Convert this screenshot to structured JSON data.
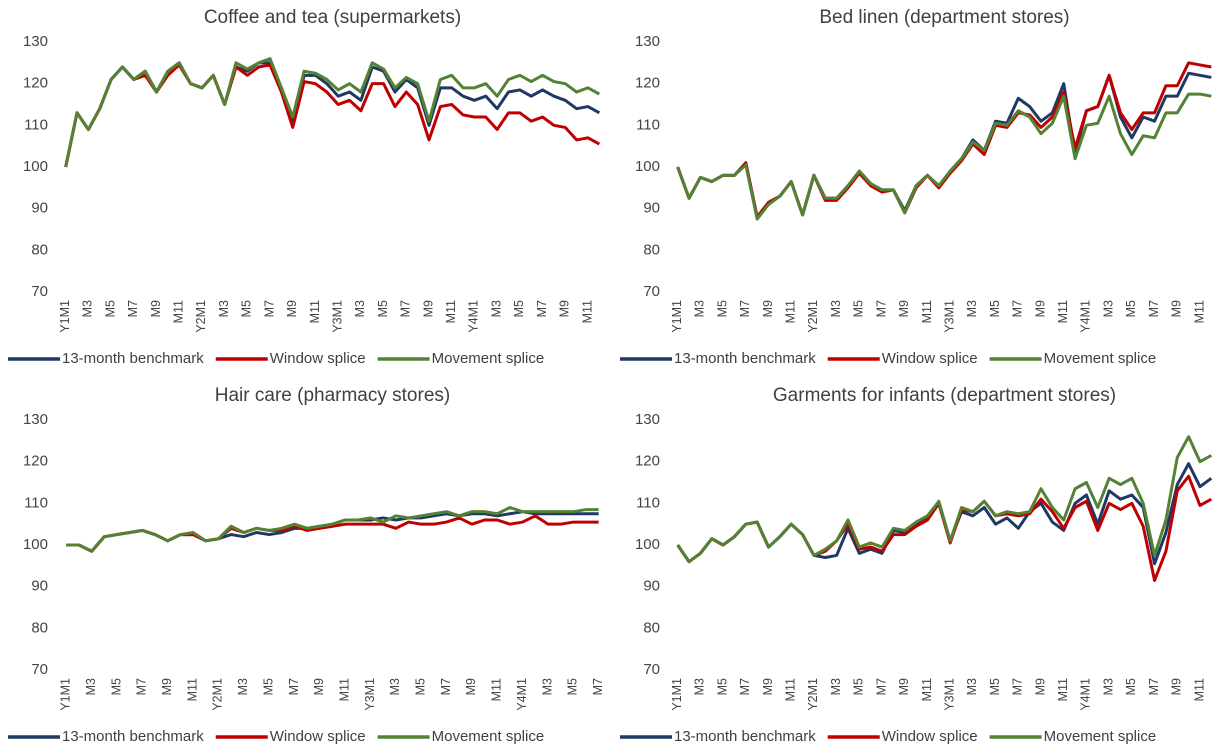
{
  "chart_data": [
    {
      "type": "line",
      "title": "Coffee and tea (supermarkets)",
      "categories": [
        "Y1M1",
        null,
        "M3",
        null,
        "M5",
        null,
        "M7",
        null,
        "M9",
        null,
        "M11",
        null,
        "Y2M1",
        null,
        "M3",
        null,
        "M5",
        null,
        "M7",
        null,
        "M9",
        null,
        "M11",
        null,
        "Y3M1",
        null,
        "M3",
        null,
        "M5",
        null,
        "M7",
        null,
        "M9",
        null,
        "M11",
        null,
        "Y4M1",
        null,
        "M3",
        null,
        "M5",
        null,
        "M7",
        null,
        "M9",
        null,
        "M11",
        null
      ],
      "ylim": [
        70,
        130
      ],
      "yticks": [
        70,
        80,
        90,
        100,
        110,
        120,
        130
      ],
      "grid": false,
      "legend": "bottom",
      "series": [
        {
          "name": "13-month benchmark",
          "color": "#1f3864",
          "values": [
            100,
            113,
            109,
            114,
            121,
            124,
            121,
            123,
            118,
            123,
            125,
            120,
            119,
            122,
            115,
            124,
            123,
            125,
            125,
            119,
            111,
            122,
            122,
            120,
            117,
            118,
            116,
            124,
            123,
            118,
            121,
            119,
            110,
            119,
            119,
            117,
            116,
            117,
            114,
            118,
            118.5,
            117,
            118.5,
            117,
            116,
            114,
            114.5,
            113
          ]
        },
        {
          "name": "Window splice",
          "color": "#c00000",
          "values": [
            100,
            113,
            109,
            114,
            121,
            124,
            121,
            122,
            118,
            122,
            124.5,
            120,
            119,
            122,
            115,
            124,
            122,
            124,
            124.5,
            118,
            109.5,
            120.5,
            120,
            118,
            115,
            116,
            113.5,
            120,
            120,
            114.5,
            118,
            115,
            106.5,
            114.5,
            115,
            112.5,
            112,
            112,
            109,
            113,
            113,
            111,
            112,
            110,
            109.5,
            106.5,
            107,
            105.5
          ]
        },
        {
          "name": "Movement splice",
          "color": "#548235",
          "values": [
            100,
            113,
            109,
            114,
            121,
            124,
            121,
            123,
            118,
            123,
            125,
            120,
            119,
            122,
            115,
            125,
            123.5,
            125,
            126,
            119,
            112,
            123,
            122.5,
            121,
            118.5,
            120,
            118,
            125,
            123.5,
            119,
            121.5,
            120,
            111,
            121,
            122,
            119,
            119,
            120,
            117,
            121,
            122,
            120.5,
            122,
            120.5,
            120,
            118,
            119,
            117.5
          ]
        }
      ]
    },
    {
      "type": "line",
      "title": "Bed linen (department stores)",
      "categories": [
        "Y1M1",
        null,
        "M3",
        null,
        "M5",
        null,
        "M7",
        null,
        "M9",
        null,
        "M11",
        null,
        "Y2M1",
        null,
        "M3",
        null,
        "M5",
        null,
        "M7",
        null,
        "M9",
        null,
        "M11",
        null,
        "Y3M1",
        null,
        "M3",
        null,
        "M5",
        null,
        "M7",
        null,
        "M9",
        null,
        "M11",
        null,
        "Y4M1",
        null,
        "M3",
        null,
        "M5",
        null,
        "M7",
        null,
        "M9",
        null,
        "M11",
        null
      ],
      "ylim": [
        70,
        130
      ],
      "yticks": [
        70,
        80,
        90,
        100,
        110,
        120,
        130
      ],
      "grid": false,
      "legend": "bottom",
      "series": [
        {
          "name": "13-month benchmark",
          "color": "#1f3864",
          "values": [
            100,
            92.5,
            97.5,
            96.5,
            98,
            98,
            101,
            88,
            91.5,
            93,
            96.5,
            88.5,
            98,
            92.5,
            92.5,
            95.5,
            99,
            96,
            94.5,
            94.5,
            89.5,
            95.5,
            98,
            95.5,
            99,
            102,
            106.5,
            104,
            111,
            110.5,
            116.5,
            114.5,
            111,
            113,
            120,
            103,
            113.5,
            114.5,
            122,
            112,
            107,
            112,
            111,
            117,
            117,
            122.5,
            122,
            121.5
          ]
        },
        {
          "name": "Window splice",
          "color": "#c00000",
          "values": [
            100,
            92.5,
            97.5,
            96.5,
            98,
            98,
            101,
            88,
            91.5,
            93,
            96.5,
            88.5,
            98,
            92,
            92,
            95,
            98.5,
            95.5,
            94,
            94.5,
            89,
            95,
            98,
            95,
            98.5,
            101.5,
            105.5,
            103,
            110,
            109.5,
            113,
            112.5,
            109.5,
            112,
            118,
            104.5,
            113.5,
            114.5,
            122,
            113,
            109,
            113,
            113,
            119.5,
            119.5,
            125,
            124.5,
            124
          ]
        },
        {
          "name": "Movement splice",
          "color": "#548235",
          "values": [
            100,
            92.5,
            97.5,
            96.5,
            98,
            98,
            100.5,
            87.5,
            91,
            93,
            96.5,
            88.5,
            98,
            92.5,
            92.5,
            95.5,
            99,
            96,
            94.5,
            94.5,
            89,
            95.5,
            98,
            95.5,
            99,
            102,
            106,
            104,
            110.5,
            110,
            113.5,
            112,
            108,
            110.5,
            117,
            102,
            110,
            110.5,
            117,
            108,
            103,
            107.5,
            107,
            113,
            113,
            117.5,
            117.5,
            117
          ]
        }
      ]
    },
    {
      "type": "line",
      "title": "Hair care (pharmacy stores)",
      "categories": [
        "Y1M1",
        null,
        "M3",
        null,
        "M5",
        null,
        "M7",
        null,
        "M9",
        null,
        "M11",
        null,
        "Y2M1",
        null,
        "M3",
        null,
        "M5",
        null,
        "M7",
        null,
        "M9",
        null,
        "M11",
        null,
        "Y3M1",
        null,
        "M3",
        null,
        "M5",
        null,
        "M7",
        null,
        "M9",
        null,
        "M11",
        null,
        "Y4M1",
        null,
        "M3",
        null,
        "M5",
        null,
        "M7"
      ],
      "ylim": [
        70,
        130
      ],
      "yticks": [
        70,
        80,
        90,
        100,
        110,
        120,
        130
      ],
      "grid": false,
      "legend": "bottom",
      "series": [
        {
          "name": "13-month benchmark",
          "color": "#1f3864",
          "values": [
            100,
            100,
            98.5,
            102,
            102.5,
            103,
            103.5,
            102.5,
            101,
            102.5,
            102.5,
            101,
            101.5,
            102.5,
            102,
            103,
            102.5,
            103,
            104,
            104,
            104.5,
            105,
            106,
            106,
            106,
            106.5,
            106,
            106.5,
            106.5,
            107,
            107.5,
            107,
            107.5,
            107.5,
            107,
            107.5,
            108,
            107.5,
            107.5,
            107.5,
            107.5,
            107.5,
            107.5
          ]
        },
        {
          "name": "Window splice",
          "color": "#c00000",
          "values": [
            100,
            100,
            98.5,
            102,
            102.5,
            103,
            103.5,
            102.5,
            101,
            102.5,
            102.5,
            101,
            101.5,
            104,
            103,
            104,
            103.5,
            103.5,
            104.5,
            103.5,
            104,
            104.5,
            105,
            105,
            105,
            105,
            104,
            105.5,
            105,
            105,
            105.5,
            106.5,
            105,
            106,
            106,
            105,
            105.5,
            107,
            105,
            105,
            105.5,
            105.5,
            105.5
          ]
        },
        {
          "name": "Movement splice",
          "color": "#548235",
          "values": [
            100,
            100,
            98.5,
            102,
            102.5,
            103,
            103.5,
            102.5,
            101,
            102.5,
            103,
            101,
            101.5,
            104.5,
            103,
            104,
            103.5,
            104,
            105,
            104,
            104.5,
            105,
            106,
            106,
            106.5,
            105.5,
            107,
            106.5,
            107,
            107.5,
            108,
            107,
            108,
            108,
            107.5,
            109,
            108,
            108,
            108,
            108,
            108,
            108.5,
            108.5
          ]
        }
      ]
    },
    {
      "type": "line",
      "title": "Garments for infants (department stores)",
      "categories": [
        "Y1M1",
        null,
        "M3",
        null,
        "M5",
        null,
        "M7",
        null,
        "M9",
        null,
        "M11",
        null,
        "Y2M1",
        null,
        "M3",
        null,
        "M5",
        null,
        "M7",
        null,
        "M9",
        null,
        "M11",
        null,
        "Y3M1",
        null,
        "M3",
        null,
        "M5",
        null,
        "M7",
        null,
        "M9",
        null,
        "M11",
        null,
        "Y4M1",
        null,
        "M3",
        null,
        "M5",
        null,
        "M7",
        null,
        "M9",
        null,
        "M11",
        null
      ],
      "ylim": [
        70,
        130
      ],
      "yticks": [
        70,
        80,
        90,
        100,
        110,
        120,
        130
      ],
      "grid": false,
      "legend": "bottom",
      "series": [
        {
          "name": "13-month benchmark",
          "color": "#1f3864",
          "values": [
            100,
            96,
            98,
            101.5,
            100,
            102,
            105,
            105.5,
            99.5,
            102,
            105,
            102.5,
            97.5,
            97,
            97.5,
            104,
            98,
            99,
            98,
            103.5,
            103,
            105,
            106.5,
            110,
            101,
            108,
            107,
            109,
            105,
            106.5,
            104,
            108,
            110,
            105.5,
            103.5,
            110,
            112,
            105,
            113,
            111,
            112,
            109,
            95.5,
            103,
            114.5,
            119.5,
            114,
            116
          ]
        },
        {
          "name": "Window splice",
          "color": "#c00000",
          "values": [
            100,
            96,
            98,
            101.5,
            100,
            102,
            105,
            105.5,
            99.5,
            102,
            105,
            102.5,
            97.5,
            98.5,
            101,
            105,
            99,
            99.5,
            98.5,
            102.5,
            102.5,
            104.5,
            106,
            110,
            100.5,
            108.5,
            108,
            110.5,
            107,
            107.5,
            107,
            107.5,
            111,
            108,
            104,
            109,
            110.5,
            103.5,
            110,
            108.5,
            110,
            104.5,
            91.5,
            98.5,
            113,
            116.5,
            109.5,
            111
          ]
        },
        {
          "name": "Movement splice",
          "color": "#548235",
          "values": [
            100,
            96,
            98,
            101.5,
            100,
            102,
            105,
            105.5,
            99.5,
            102,
            105,
            102.5,
            97.5,
            99,
            101,
            106,
            99.5,
            100.5,
            99.5,
            104,
            103.5,
            105.5,
            107,
            110.5,
            101,
            109,
            108,
            110.5,
            107,
            108,
            107.5,
            108,
            113.5,
            109,
            106,
            113.5,
            115,
            109,
            116,
            114.5,
            116,
            110,
            97.5,
            106,
            121,
            126,
            120,
            121.5
          ]
        }
      ]
    }
  ]
}
